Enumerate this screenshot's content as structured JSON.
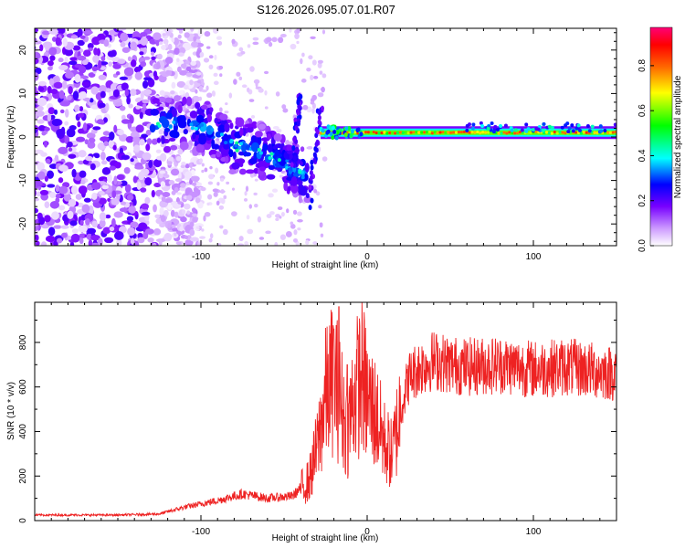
{
  "figure_title": "S126.2026.095.07.01.R07",
  "chart_data": [
    {
      "type": "heatmap",
      "title": "S126.2026.095.07.01.R07",
      "xlabel": "Height of straight line (km)",
      "ylabel": "Frequency (Hz)",
      "xlim": [
        -200,
        150
      ],
      "ylim": [
        -25,
        25
      ],
      "x_ticks": [
        -100,
        0,
        100
      ],
      "y_ticks": [
        -20,
        -10,
        0,
        10,
        20
      ],
      "colorbar": {
        "label": "Normalized spectral amplitude",
        "range": [
          0.0,
          0.97
        ],
        "ticks": [
          0.0,
          0.2,
          0.4,
          0.6,
          0.8
        ],
        "tick_labels": [
          "0.0",
          "0.2",
          "0.4",
          "0.6",
          "0.8"
        ],
        "colormap": [
          "#ffffff",
          "#cc99ff",
          "#7700ff",
          "#0000ff",
          "#00ffff",
          "#00ff00",
          "#ffff00",
          "#ff6600",
          "#ff0000",
          "#ff0077"
        ]
      },
      "features": {
        "noise_region_x": [
          -200,
          -125
        ],
        "noise_amplitude": 0.25,
        "descending_track": [
          [
            -130,
            3
          ],
          [
            -110,
            3
          ],
          [
            -95,
            2
          ],
          [
            -80,
            -2
          ],
          [
            -65,
            -3
          ],
          [
            -55,
            -5
          ],
          [
            -45,
            -7
          ],
          [
            -38,
            -9
          ]
        ],
        "rising_streaks": [
          [
            -45,
            -6,
            -40,
            10
          ],
          [
            -35,
            -16,
            -28,
            6
          ]
        ],
        "tone_band": {
          "x": [
            -28,
            150
          ],
          "freq_hz": 1,
          "amplitude": 0.85
        }
      }
    },
    {
      "type": "line",
      "xlabel": "Height of straight line (km)",
      "ylabel": "SNR (10 * v/v)",
      "xlim": [
        -200,
        150
      ],
      "ylim": [
        0,
        980
      ],
      "x_ticks": [
        -100,
        0,
        100
      ],
      "y_ticks": [
        0,
        200,
        400,
        600,
        800
      ],
      "series": [
        {
          "name": "SNR",
          "color": "#ee2222",
          "anchors_x": [
            -200,
            -150,
            -125,
            -110,
            -90,
            -75,
            -60,
            -45,
            -35,
            -30,
            -25,
            -20,
            -15,
            -12,
            -8,
            -3,
            0,
            5,
            10,
            15,
            20,
            25,
            30,
            40,
            50,
            60,
            80,
            100,
            120,
            150
          ],
          "anchors_y": [
            25,
            25,
            30,
            60,
            90,
            120,
            100,
            110,
            180,
            330,
            560,
            650,
            500,
            400,
            560,
            660,
            540,
            480,
            360,
            290,
            500,
            640,
            680,
            720,
            700,
            690,
            700,
            680,
            690,
            660
          ],
          "noise_amplitude": 0.35,
          "spikes": [
            [
              -17,
              960
            ],
            [
              -20,
              860
            ],
            [
              -12,
              700
            ]
          ]
        }
      ]
    }
  ]
}
